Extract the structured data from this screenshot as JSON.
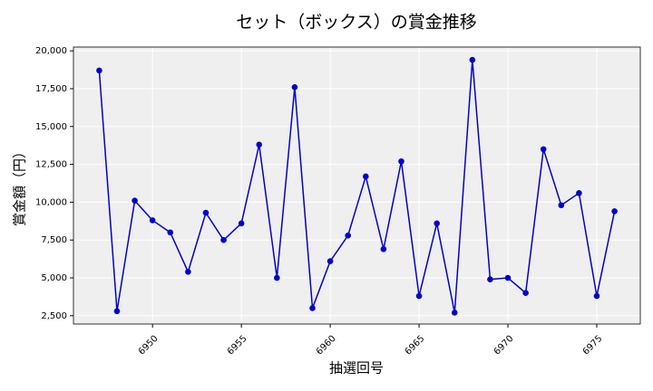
{
  "chart_data": {
    "type": "line",
    "title": "セット（ボックス）の賞金推移",
    "x_label": "抽選回号",
    "y_label": "賞金額（円）",
    "x": [
      6947,
      6948,
      6949,
      6950,
      6951,
      6952,
      6953,
      6954,
      6955,
      6956,
      6957,
      6958,
      6959,
      6960,
      6961,
      6962,
      6963,
      6964,
      6965,
      6966,
      6967,
      6968,
      6969,
      6970,
      6971,
      6972,
      6973,
      6974,
      6975,
      6976
    ],
    "series": [
      {
        "name": "賞金",
        "color": "#0000cc",
        "values": [
          18700,
          2800,
          10100,
          8800,
          8000,
          5400,
          9300,
          7500,
          8600,
          13800,
          5000,
          17600,
          3000,
          6100,
          7800,
          11700,
          6900,
          12700,
          3800,
          8600,
          2700,
          19400,
          4900,
          5000,
          4000,
          13500,
          9800,
          10600,
          3800,
          9400
        ]
      }
    ],
    "xlim": [
      6945.55,
      6977.45
    ],
    "ylim": [
      1950,
      20250
    ],
    "xticks": [
      6950,
      6955,
      6960,
      6965,
      6970,
      6975
    ],
    "yticks": [
      {
        "value": 2500,
        "label": "2,500"
      },
      {
        "value": 5000,
        "label": "5,000"
      },
      {
        "value": 7500,
        "label": "7,500"
      },
      {
        "value": 10000,
        "label": "10,000"
      },
      {
        "value": 12500,
        "label": "12,500"
      },
      {
        "value": 15000,
        "label": "15,000"
      },
      {
        "value": 17500,
        "label": "17,500"
      },
      {
        "value": 20000,
        "label": "20,000"
      }
    ],
    "grid": true
  }
}
